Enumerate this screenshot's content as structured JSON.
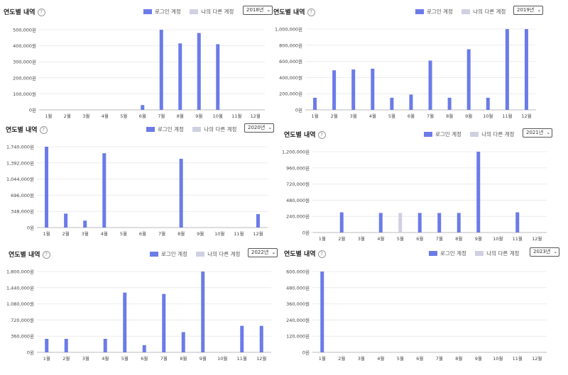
{
  "legend": {
    "login_label": "로그인 계정",
    "other_label": "나의 다른 계정"
  },
  "colors": {
    "login": "#6b7be8",
    "other": "#cfd0e2",
    "grid": "#ececec",
    "axis": "#bbbbbb"
  },
  "help_icon": "?",
  "panels": [
    {
      "title": "연도별 내역",
      "selected_year": "2018년",
      "chart_data": {
        "type": "bar",
        "categories": [
          "1월",
          "2월",
          "3월",
          "4월",
          "5월",
          "6월",
          "7월",
          "8월",
          "9월",
          "10월",
          "11월",
          "12월"
        ],
        "series": [
          {
            "name": "로그인 계정",
            "values": [
              0,
              0,
              0,
              0,
              0,
              30000,
              500000,
              415000,
              480000,
              410000,
              0,
              0
            ]
          },
          {
            "name": "나의 다른 계정",
            "values": [
              0,
              0,
              0,
              0,
              0,
              0,
              0,
              0,
              0,
              0,
              0,
              0
            ]
          }
        ],
        "yticks": [
          "0원",
          "100,000원",
          "200,000원",
          "300,000원",
          "400,000원",
          "500,000원"
        ],
        "ylim": [
          0,
          500000
        ],
        "legend_position": "top-right"
      }
    },
    {
      "title": "연도별 내역",
      "selected_year": "2019년",
      "chart_data": {
        "type": "bar",
        "categories": [
          "1월",
          "2월",
          "3월",
          "4월",
          "5월",
          "6월",
          "7월",
          "8월",
          "9월",
          "10월",
          "11월",
          "12월"
        ],
        "series": [
          {
            "name": "로그인 계정",
            "values": [
              150000,
              490000,
              500000,
              510000,
              150000,
              190000,
              610000,
              150000,
              750000,
              150000,
              1000000,
              1000000
            ]
          },
          {
            "name": "나의 다른 계정",
            "values": [
              0,
              0,
              0,
              0,
              0,
              0,
              0,
              0,
              0,
              0,
              0,
              0
            ]
          }
        ],
        "yticks": [
          "0원",
          "200,000원",
          "400,000원",
          "600,000원",
          "800,000원",
          "1,000,000원"
        ],
        "ylim": [
          0,
          1000000
        ],
        "legend_position": "top-right"
      }
    },
    {
      "title": "연도별 내역",
      "selected_year": "2020년",
      "chart_data": {
        "type": "bar",
        "categories": [
          "1월",
          "2월",
          "3월",
          "4월",
          "5월",
          "6월",
          "7월",
          "8월",
          "9월",
          "10월",
          "11월",
          "12월"
        ],
        "series": [
          {
            "name": "로그인 계정",
            "values": [
              1740000,
              300000,
              150000,
              1600000,
              0,
              0,
              0,
              1480000,
              0,
              0,
              0,
              290000
            ]
          },
          {
            "name": "나의 다른 계정",
            "values": [
              0,
              0,
              0,
              0,
              0,
              0,
              0,
              0,
              0,
              0,
              0,
              0
            ]
          }
        ],
        "yticks": [
          "0원",
          "348,000원",
          "696,000원",
          "1,044,000원",
          "1,392,000원",
          "1,740,000원"
        ],
        "ylim": [
          0,
          1740000
        ],
        "legend_position": "top-right"
      }
    },
    {
      "title": "연도별 내역",
      "selected_year": "2021년",
      "chart_data": {
        "type": "bar",
        "categories": [
          "1월",
          "2월",
          "3월",
          "4월",
          "5월",
          "6월",
          "7월",
          "8월",
          "9월",
          "10월",
          "11월",
          "12월"
        ],
        "series": [
          {
            "name": "로그인 계정",
            "values": [
              0,
              300000,
              0,
              290000,
              0,
              290000,
              290000,
              290000,
              1200000,
              0,
              300000,
              0
            ]
          },
          {
            "name": "나의 다른 계정",
            "values": [
              0,
              0,
              0,
              0,
              290000,
              0,
              0,
              0,
              0,
              0,
              0,
              0
            ]
          }
        ],
        "yticks": [
          "0원",
          "240,000원",
          "480,000원",
          "720,000원",
          "960,000원",
          "1,200,000원"
        ],
        "ylim": [
          0,
          1200000
        ],
        "legend_position": "top-right"
      }
    },
    {
      "title": "연도별 내역",
      "selected_year": "2022년",
      "chart_data": {
        "type": "bar",
        "categories": [
          "1월",
          "2월",
          "3월",
          "4월",
          "5월",
          "6월",
          "7월",
          "8월",
          "9월",
          "10월",
          "11월",
          "12월"
        ],
        "series": [
          {
            "name": "로그인 계정",
            "values": [
              300000,
              300000,
              0,
              300000,
              1330000,
              160000,
              1300000,
              450000,
              1800000,
              0,
              590000,
              590000
            ]
          },
          {
            "name": "나의 다른 계정",
            "values": [
              0,
              0,
              0,
              0,
              0,
              0,
              0,
              0,
              0,
              0,
              0,
              0
            ]
          }
        ],
        "yticks": [
          "0원",
          "360,000원",
          "720,000원",
          "1,080,000원",
          "1,440,000원",
          "1,800,000원"
        ],
        "ylim": [
          0,
          1800000
        ],
        "legend_position": "top-right"
      }
    },
    {
      "title": "연도별 내역",
      "selected_year": "2023년",
      "chart_data": {
        "type": "bar",
        "categories": [
          "1월",
          "2월",
          "3월",
          "4월",
          "5월",
          "6월",
          "7월",
          "8월",
          "9월",
          "10월",
          "11월",
          "12월"
        ],
        "series": [
          {
            "name": "로그인 계정",
            "values": [
              600000,
              0,
              0,
              0,
              0,
              0,
              0,
              0,
              0,
              0,
              0,
              0
            ]
          },
          {
            "name": "나의 다른 계정",
            "values": [
              0,
              0,
              0,
              0,
              0,
              0,
              0,
              0,
              0,
              0,
              0,
              0
            ]
          }
        ],
        "yticks": [
          "0원",
          "120,000원",
          "240,000원",
          "360,000원",
          "480,000원",
          "600,000원"
        ],
        "ylim": [
          0,
          600000
        ],
        "legend_position": "top-right"
      }
    }
  ]
}
